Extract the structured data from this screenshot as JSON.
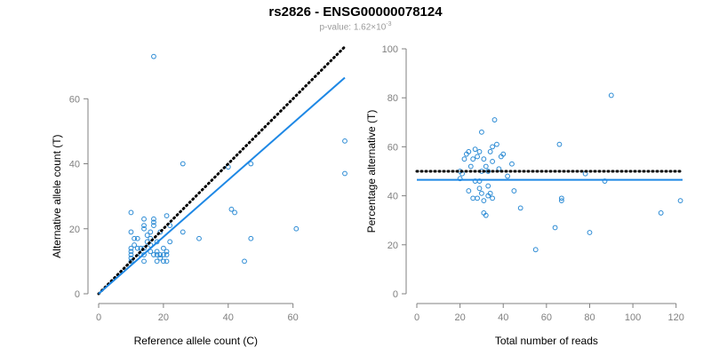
{
  "header": {
    "title": "rs2826 - ENSG00000078124",
    "pvalue_prefix": "p-value: 1.62×10",
    "pvalue_exponent": "-3"
  },
  "chart_data": [
    {
      "type": "scatter",
      "xlabel": "Reference allele count (C)",
      "ylabel": "Alternative allele count (T)",
      "xlim": [
        0,
        76
      ],
      "ylim": [
        0,
        74
      ],
      "xticks": [
        0,
        20,
        40,
        60
      ],
      "yticks": [
        0,
        20,
        40,
        60
      ],
      "grid": false,
      "points": [
        [
          17,
          73
        ],
        [
          26,
          40
        ],
        [
          40,
          39
        ],
        [
          41,
          26
        ],
        [
          42,
          25
        ],
        [
          47,
          40
        ],
        [
          47,
          17
        ],
        [
          45,
          10
        ],
        [
          31,
          17
        ],
        [
          26,
          19
        ],
        [
          61,
          20
        ],
        [
          76,
          47
        ],
        [
          76,
          37
        ],
        [
          10,
          25
        ],
        [
          10,
          19
        ],
        [
          10,
          14
        ],
        [
          10,
          13
        ],
        [
          10,
          12
        ],
        [
          10,
          11
        ],
        [
          10,
          10
        ],
        [
          11,
          17
        ],
        [
          11,
          15
        ],
        [
          12,
          17
        ],
        [
          12,
          14
        ],
        [
          13,
          14
        ],
        [
          13,
          12
        ],
        [
          14,
          23
        ],
        [
          14,
          21
        ],
        [
          14,
          20
        ],
        [
          14,
          14
        ],
        [
          14,
          12
        ],
        [
          14,
          10
        ],
        [
          15,
          18
        ],
        [
          15,
          16
        ],
        [
          16,
          19
        ],
        [
          16,
          17
        ],
        [
          16,
          13
        ],
        [
          16,
          15
        ],
        [
          17,
          23
        ],
        [
          17,
          22
        ],
        [
          17,
          21
        ],
        [
          17,
          12
        ],
        [
          18,
          13
        ],
        [
          18,
          12
        ],
        [
          18,
          10
        ],
        [
          19,
          12
        ],
        [
          19,
          11
        ],
        [
          19,
          19
        ],
        [
          20,
          14
        ],
        [
          20,
          12
        ],
        [
          20,
          10
        ],
        [
          21,
          24
        ],
        [
          21,
          12
        ],
        [
          21,
          13
        ],
        [
          21,
          10
        ],
        [
          22,
          21
        ],
        [
          22,
          16
        ],
        [
          18,
          16
        ]
      ],
      "lines": [
        {
          "name": "identity",
          "style": "dotted",
          "x": [
            0,
            76
          ],
          "y": [
            0,
            76
          ]
        },
        {
          "name": "fit",
          "style": "solid",
          "x": [
            0,
            76
          ],
          "y": [
            0,
            66.5
          ]
        }
      ],
      "colors": {
        "points": "#2a8ad4",
        "fit": "#1e88e5",
        "identity": "#000000"
      }
    },
    {
      "type": "scatter",
      "xlabel": "Total number of reads",
      "ylabel": "Percentage alternative (T)",
      "xlim": [
        0,
        123
      ],
      "ylim": [
        0,
        100
      ],
      "xticks": [
        0,
        20,
        40,
        60,
        80,
        100,
        120
      ],
      "yticks": [
        0,
        20,
        40,
        60,
        80,
        100
      ],
      "grid": false,
      "points": [
        [
          20,
          50
        ],
        [
          21,
          49
        ],
        [
          22,
          55
        ],
        [
          23,
          57
        ],
        [
          24,
          58
        ],
        [
          25,
          52
        ],
        [
          26,
          55
        ],
        [
          27,
          59
        ],
        [
          28,
          56
        ],
        [
          29,
          58
        ],
        [
          29,
          46
        ],
        [
          30,
          66
        ],
        [
          30,
          50
        ],
        [
          31,
          55
        ],
        [
          32,
          52
        ],
        [
          33,
          50
        ],
        [
          33,
          44
        ],
        [
          34,
          58
        ],
        [
          35,
          60
        ],
        [
          35,
          54
        ],
        [
          36,
          71
        ],
        [
          37,
          61
        ],
        [
          38,
          51
        ],
        [
          39,
          56
        ],
        [
          40,
          57
        ],
        [
          42,
          48
        ],
        [
          44,
          53
        ],
        [
          45,
          42
        ],
        [
          24,
          42
        ],
        [
          26,
          39
        ],
        [
          27,
          46
        ],
        [
          28,
          39
        ],
        [
          29,
          43
        ],
        [
          30,
          41
        ],
        [
          31,
          38
        ],
        [
          31,
          33
        ],
        [
          32,
          32
        ],
        [
          33,
          40
        ],
        [
          34,
          41
        ],
        [
          35,
          39
        ],
        [
          48,
          35
        ],
        [
          55,
          18
        ],
        [
          64,
          27
        ],
        [
          66,
          61
        ],
        [
          67,
          38
        ],
        [
          67,
          39
        ],
        [
          78,
          49
        ],
        [
          80,
          25
        ],
        [
          87,
          46
        ],
        [
          90,
          81
        ],
        [
          113,
          33
        ],
        [
          122,
          38
        ],
        [
          20,
          47
        ]
      ],
      "lines": [
        {
          "name": "expected",
          "style": "dotted",
          "x": [
            0,
            123
          ],
          "y": [
            50,
            50
          ]
        },
        {
          "name": "fit",
          "style": "solid",
          "x": [
            0,
            123
          ],
          "y": [
            46.5,
            46.5
          ]
        }
      ],
      "colors": {
        "points": "#2a8ad4",
        "fit": "#1e88e5",
        "reference": "#000000"
      }
    }
  ]
}
